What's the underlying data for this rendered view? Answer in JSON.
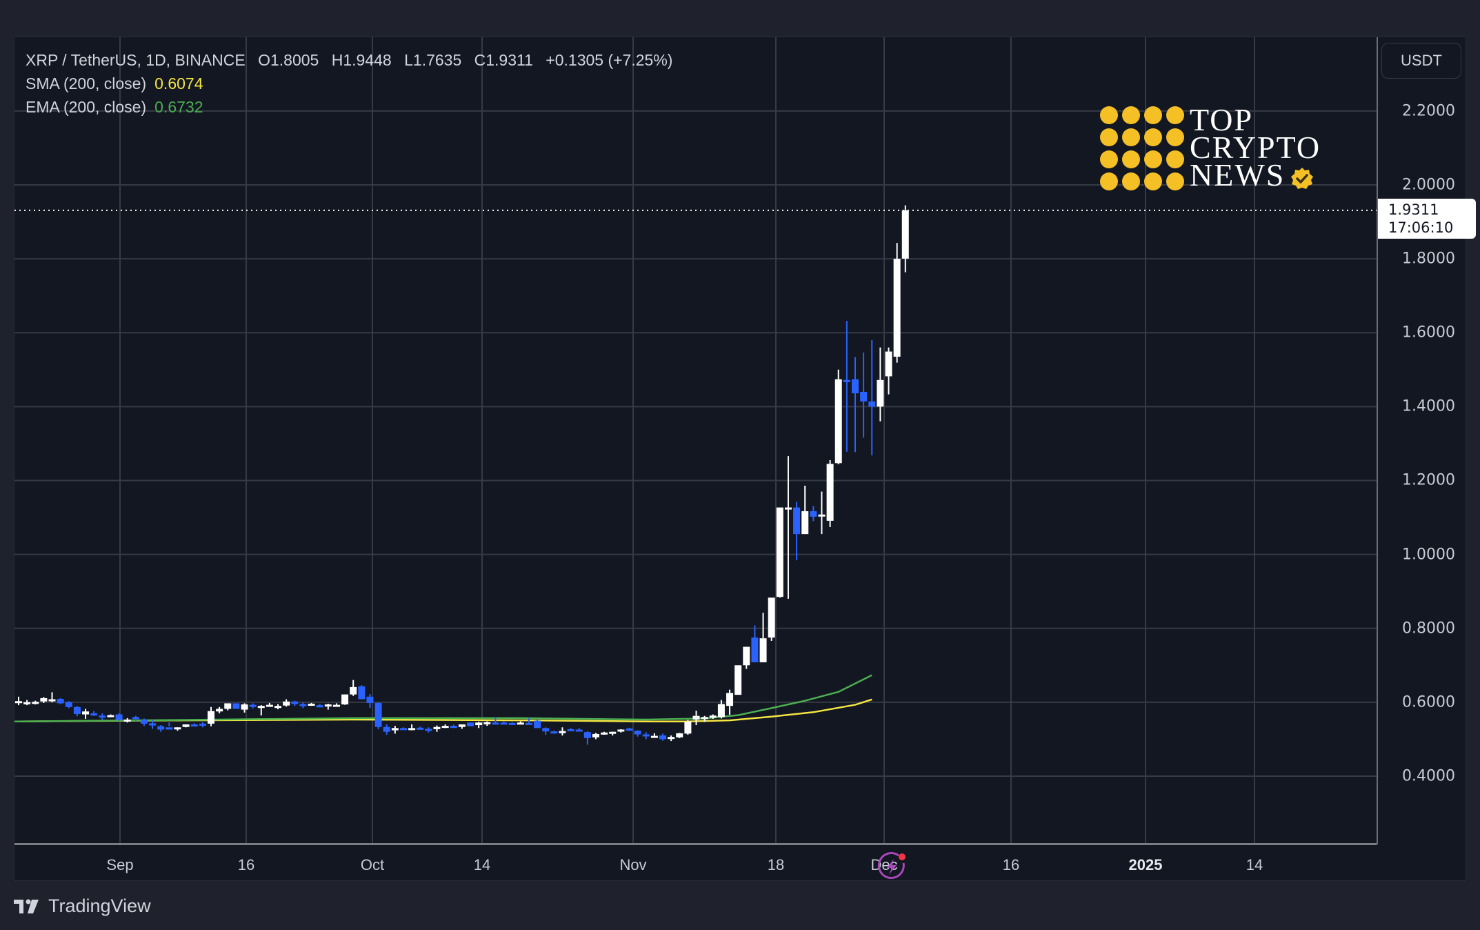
{
  "header": {
    "symbol": "XRP / TetherUS, 1D, BINANCE",
    "open": "O1.8005",
    "high": "H1.9448",
    "low": "L1.7635",
    "close": "C1.9311",
    "change": "+0.1305 (+7.25%)",
    "sma_label": "SMA (200, close)",
    "sma_value": "0.6074",
    "ema_label": "EMA (200, close)",
    "ema_value": "0.6732"
  },
  "price_axis": {
    "currency_button": "USDT",
    "ticks": [
      "2.2000",
      "2.0000",
      "1.8000",
      "1.6000",
      "1.4000",
      "1.2000",
      "1.0000",
      "0.8000",
      "0.6000",
      "0.4000"
    ],
    "last_price": "1.9311",
    "countdown": "17:06:10"
  },
  "time_axis": {
    "ticks": [
      "Sep",
      "16",
      "Oct",
      "14",
      "Nov",
      "18",
      "Dec",
      "16",
      "2025",
      "14"
    ]
  },
  "brand": {
    "line1": "TOP",
    "line2": "CRYPTO",
    "line3": "NEWS"
  },
  "footer": {
    "logo_text": "TradingView"
  },
  "colors": {
    "background": "#131722",
    "up_candle": "#ffffff",
    "down_candle": "#2962ff",
    "sma": "#f5e642",
    "ema": "#4caf50",
    "grid": "#363a45",
    "brand_gold": "#f5c025",
    "alert_purple": "#ab47bc",
    "alert_dot": "#f23645"
  },
  "chart_data": {
    "type": "candlestick",
    "title": "XRP / TetherUS, 1D, BINANCE",
    "xlabel": "",
    "ylabel": "USDT",
    "ylim": [
      0.22,
      2.3
    ],
    "grid": true,
    "legend_position": "top-left",
    "y_ticks": [
      0.4,
      0.6,
      0.8,
      1.0,
      1.2,
      1.4,
      1.6,
      1.8,
      2.0,
      2.2
    ],
    "x_ticks": [
      "Sep",
      "16",
      "Oct",
      "14",
      "Nov",
      "18",
      "Dec",
      "16",
      "2025",
      "14"
    ],
    "start_date": "2024-08-20",
    "ohlc": [
      [
        0.6,
        0.615,
        0.592,
        0.603
      ],
      [
        0.596,
        0.606,
        0.592,
        0.6
      ],
      [
        0.6,
        0.604,
        0.594,
        0.601
      ],
      [
        0.602,
        0.614,
        0.598,
        0.611
      ],
      [
        0.608,
        0.627,
        0.6,
        0.608
      ],
      [
        0.609,
        0.611,
        0.595,
        0.597
      ],
      [
        0.6,
        0.603,
        0.584,
        0.587
      ],
      [
        0.587,
        0.59,
        0.562,
        0.568
      ],
      [
        0.567,
        0.582,
        0.555,
        0.575
      ],
      [
        0.57,
        0.576,
        0.563,
        0.564
      ],
      [
        0.564,
        0.57,
        0.552,
        0.56
      ],
      [
        0.562,
        0.567,
        0.56,
        0.565
      ],
      [
        0.567,
        0.57,
        0.55,
        0.552
      ],
      [
        0.55,
        0.557,
        0.545,
        0.553
      ],
      [
        0.56,
        0.563,
        0.55,
        0.556
      ],
      [
        0.552,
        0.556,
        0.536,
        0.542
      ],
      [
        0.543,
        0.552,
        0.528,
        0.537
      ],
      [
        0.535,
        0.538,
        0.52,
        0.526
      ],
      [
        0.532,
        0.545,
        0.535,
        0.526
      ],
      [
        0.528,
        0.532,
        0.523,
        0.532
      ],
      [
        0.533,
        0.538,
        0.532,
        0.54
      ],
      [
        0.54,
        0.543,
        0.534,
        0.537
      ],
      [
        0.542,
        0.546,
        0.532,
        0.541
      ],
      [
        0.542,
        0.587,
        0.535,
        0.576
      ],
      [
        0.575,
        0.587,
        0.57,
        0.582
      ],
      [
        0.582,
        0.597,
        0.578,
        0.597
      ],
      [
        0.597,
        0.597,
        0.586,
        0.582
      ],
      [
        0.58,
        0.597,
        0.572,
        0.594
      ],
      [
        0.593,
        0.597,
        0.583,
        0.592
      ],
      [
        0.59,
        0.592,
        0.564,
        0.59
      ],
      [
        0.592,
        0.598,
        0.59,
        0.593
      ],
      [
        0.59,
        0.595,
        0.581,
        0.59
      ],
      [
        0.591,
        0.608,
        0.588,
        0.602
      ],
      [
        0.602,
        0.604,
        0.59,
        0.595
      ],
      [
        0.595,
        0.599,
        0.584,
        0.59
      ],
      [
        0.592,
        0.598,
        0.59,
        0.596
      ],
      [
        0.592,
        0.595,
        0.586,
        0.586
      ],
      [
        0.59,
        0.596,
        0.58,
        0.594
      ],
      [
        0.593,
        0.597,
        0.588,
        0.593
      ],
      [
        0.594,
        0.621,
        0.593,
        0.621
      ],
      [
        0.621,
        0.66,
        0.617,
        0.641
      ],
      [
        0.643,
        0.646,
        0.61,
        0.608
      ],
      [
        0.615,
        0.622,
        0.585,
        0.598
      ],
      [
        0.598,
        0.6,
        0.527,
        0.533
      ],
      [
        0.533,
        0.54,
        0.512,
        0.52
      ],
      [
        0.524,
        0.536,
        0.515,
        0.53
      ],
      [
        0.53,
        0.532,
        0.525,
        0.526
      ],
      [
        0.529,
        0.54,
        0.524,
        0.53
      ],
      [
        0.531,
        0.534,
        0.525,
        0.526
      ],
      [
        0.528,
        0.532,
        0.518,
        0.526
      ],
      [
        0.527,
        0.537,
        0.52,
        0.533
      ],
      [
        0.533,
        0.54,
        0.53,
        0.536
      ],
      [
        0.536,
        0.539,
        0.53,
        0.532
      ],
      [
        0.533,
        0.54,
        0.528,
        0.54
      ],
      [
        0.545,
        0.545,
        0.535,
        0.535
      ],
      [
        0.538,
        0.547,
        0.53,
        0.545
      ],
      [
        0.545,
        0.548,
        0.536,
        0.546
      ],
      [
        0.545,
        0.56,
        0.543,
        0.543
      ],
      [
        0.545,
        0.548,
        0.54,
        0.543
      ],
      [
        0.544,
        0.546,
        0.541,
        0.542
      ],
      [
        0.545,
        0.548,
        0.542,
        0.545
      ],
      [
        0.544,
        0.557,
        0.541,
        0.543
      ],
      [
        0.55,
        0.554,
        0.54,
        0.53
      ],
      [
        0.53,
        0.532,
        0.512,
        0.521
      ],
      [
        0.521,
        0.523,
        0.515,
        0.516
      ],
      [
        0.518,
        0.532,
        0.51,
        0.522
      ],
      [
        0.527,
        0.53,
        0.524,
        0.525
      ],
      [
        0.526,
        0.53,
        0.521,
        0.521
      ],
      [
        0.519,
        0.521,
        0.485,
        0.503
      ],
      [
        0.505,
        0.517,
        0.5,
        0.514
      ],
      [
        0.513,
        0.52,
        0.512,
        0.518
      ],
      [
        0.516,
        0.52,
        0.51,
        0.52
      ],
      [
        0.522,
        0.527,
        0.518,
        0.526
      ],
      [
        0.529,
        0.531,
        0.523,
        0.523
      ],
      [
        0.523,
        0.524,
        0.507,
        0.513
      ],
      [
        0.513,
        0.519,
        0.5,
        0.512
      ],
      [
        0.507,
        0.516,
        0.506,
        0.509
      ],
      [
        0.51,
        0.515,
        0.496,
        0.5
      ],
      [
        0.502,
        0.51,
        0.495,
        0.506
      ],
      [
        0.505,
        0.517,
        0.503,
        0.516
      ],
      [
        0.515,
        0.552,
        0.512,
        0.548
      ],
      [
        0.553,
        0.577,
        0.538,
        0.563
      ],
      [
        0.558,
        0.563,
        0.547,
        0.56
      ],
      [
        0.558,
        0.567,
        0.555,
        0.564
      ],
      [
        0.56,
        0.606,
        0.556,
        0.595
      ],
      [
        0.59,
        0.634,
        0.566,
        0.625
      ],
      [
        0.62,
        0.662,
        0.622,
        0.7
      ],
      [
        0.7,
        0.74,
        0.69,
        0.75
      ],
      [
        0.775,
        0.808,
        0.773,
        0.708
      ],
      [
        0.708,
        0.842,
        0.773,
        0.773
      ],
      [
        0.775,
        0.866,
        0.766,
        0.883
      ],
      [
        0.885,
        0.925,
        0.883,
        1.127
      ],
      [
        1.127,
        1.266,
        0.88,
        1.127
      ],
      [
        1.127,
        1.142,
        0.984,
        1.055
      ],
      [
        1.055,
        1.186,
        1.055,
        1.117
      ],
      [
        1.117,
        1.131,
        1.09,
        1.102
      ],
      [
        1.105,
        1.17,
        1.055,
        1.108
      ],
      [
        1.091,
        1.255,
        1.074,
        1.245
      ],
      [
        1.247,
        1.5,
        1.244,
        1.474
      ],
      [
        1.472,
        1.632,
        1.278,
        1.468
      ],
      [
        1.474,
        1.534,
        1.277,
        1.436
      ],
      [
        1.44,
        1.546,
        1.316,
        1.414
      ],
      [
        1.414,
        1.58,
        1.268,
        1.4
      ],
      [
        1.4,
        1.56,
        1.36,
        1.472
      ],
      [
        1.482,
        1.56,
        1.433,
        1.549
      ],
      [
        1.535,
        1.843,
        1.519,
        1.8
      ],
      [
        1.8005,
        1.9448,
        1.7635,
        1.9311
      ]
    ],
    "series": [
      {
        "name": "SMA (200, close)",
        "color": "#f5e642",
        "last_value": 0.6074,
        "points": [
          [
            0,
            0.548
          ],
          [
            20,
            0.551
          ],
          [
            40,
            0.553
          ],
          [
            60,
            0.551
          ],
          [
            75,
            0.548
          ],
          [
            80,
            0.548
          ],
          [
            85,
            0.551
          ],
          [
            90,
            0.561
          ],
          [
            95,
            0.573
          ],
          [
            100,
            0.593
          ],
          [
            102,
            0.6074
          ]
        ]
      },
      {
        "name": "EMA (200, close)",
        "color": "#4caf50",
        "last_value": 0.6732,
        "points": [
          [
            0,
            0.548
          ],
          [
            20,
            0.552
          ],
          [
            40,
            0.557
          ],
          [
            60,
            0.557
          ],
          [
            75,
            0.553
          ],
          [
            82,
            0.556
          ],
          [
            86,
            0.565
          ],
          [
            90,
            0.584
          ],
          [
            94,
            0.604
          ],
          [
            98,
            0.628
          ],
          [
            102,
            0.6732
          ]
        ]
      }
    ]
  }
}
